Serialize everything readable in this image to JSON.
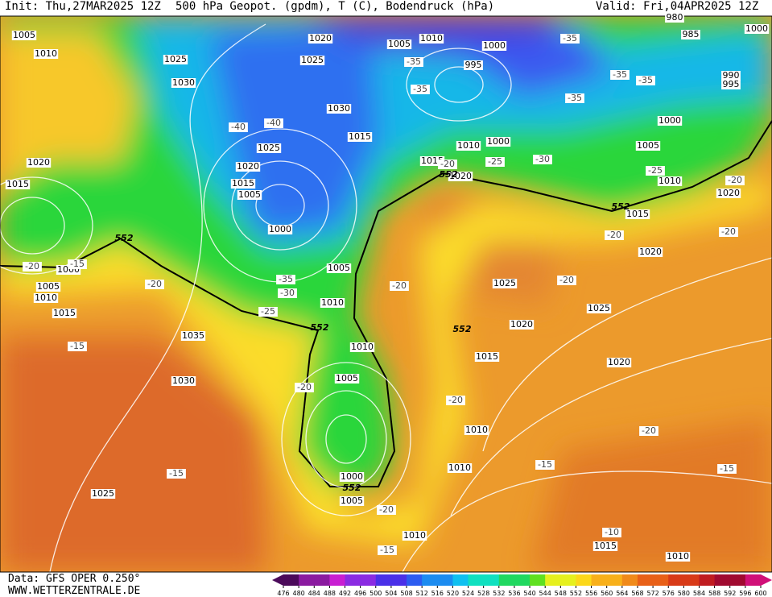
{
  "header": {
    "init": "Init: Thu,27MAR2025 12Z",
    "title": "500 hPa Geopot. (gpdm), T (C), Bodendruck (hPa)",
    "valid": "Valid: Fri,04APR2025 12Z"
  },
  "footer": {
    "data": "Data: GFS OPER 0.250°",
    "site": "WWW.WETTERZENTRALE.DE"
  },
  "colorbar": {
    "ticks": [
      476,
      480,
      484,
      488,
      492,
      496,
      500,
      504,
      508,
      512,
      516,
      520,
      524,
      528,
      532,
      536,
      540,
      544,
      548,
      552,
      556,
      560,
      564,
      568,
      572,
      576,
      580,
      584,
      588,
      592,
      596,
      600
    ]
  },
  "isobar_labels": [
    "1005",
    "1010",
    "1025",
    "1030",
    "1020",
    "1025",
    "1030",
    "1015",
    "1025",
    "1020",
    "1015",
    "1005",
    "1000",
    "1020",
    "1015",
    "1000",
    "1005",
    "1010",
    "1015",
    "1035",
    "1030",
    "1025",
    "1005",
    "1010",
    "1010",
    "1005",
    "1000",
    "1005",
    "1010",
    "1010",
    "1010",
    "1015",
    "1020",
    "1025",
    "1025",
    "1020",
    "1020",
    "1015",
    "1010",
    "1005",
    "1000",
    "1015",
    "1010",
    "1020",
    "1000",
    "1005",
    "1010",
    "1000",
    "995",
    "990",
    "995",
    "985",
    "980",
    "1000",
    "1020",
    "1010",
    "1015"
  ],
  "temp_labels": [
    "-35",
    "-35",
    "-35",
    "-35",
    "-35",
    "-35",
    "-40",
    "-40",
    "-25",
    "-30",
    "-25",
    "-20",
    "-20",
    "-20",
    "-20",
    "-20",
    "-20",
    "-15",
    "-20",
    "-35",
    "-30",
    "-25",
    "-15",
    "-20",
    "-20",
    "-20",
    "-15",
    "-15",
    "-15",
    "-20",
    "-15",
    "-10",
    "-20"
  ],
  "geopot_labels": [
    "552",
    "552",
    "552",
    "552",
    "552",
    "552"
  ]
}
